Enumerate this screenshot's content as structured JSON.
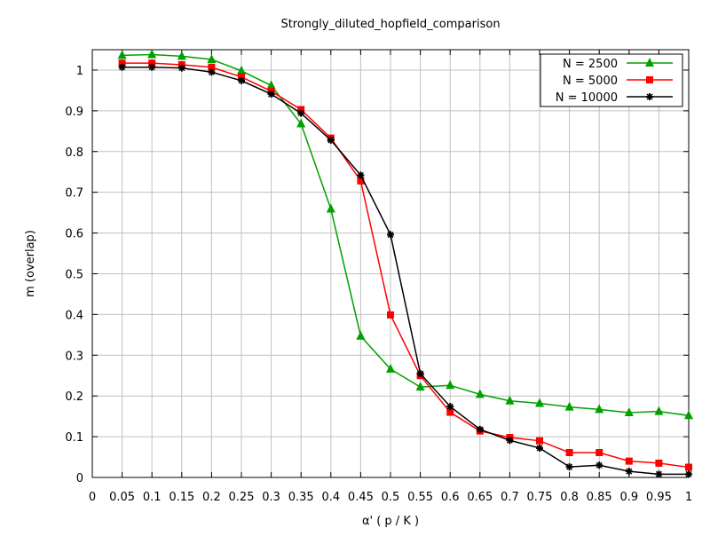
{
  "chart_data": {
    "type": "line",
    "title": "Strongly_diluted_hopfield_comparison",
    "xlabel": "α'  ( p / K )",
    "ylabel": "m (overlap)",
    "xlim": [
      0,
      1
    ],
    "ylim": [
      0,
      1.05
    ],
    "grid": true,
    "legend_position": "top-right",
    "x_ticks": [
      "0",
      "0.05",
      "0.1",
      "0.15",
      "0.2",
      "0.25",
      "0.3",
      "0.35",
      "0.4",
      "0.45",
      "0.5",
      "0.55",
      "0.6",
      "0.65",
      "0.7",
      "0.75",
      "0.8",
      "0.85",
      "0.9",
      "0.95",
      "1"
    ],
    "y_ticks": [
      "0",
      "0.1",
      "0.2",
      "0.3",
      "0.4",
      "0.5",
      "0.6",
      "0.7",
      "0.8",
      "0.9",
      "1"
    ],
    "x": [
      0.05,
      0.1,
      0.15,
      0.2,
      0.25,
      0.3,
      0.35,
      0.4,
      0.45,
      0.5,
      0.55,
      0.6,
      0.65,
      0.7,
      0.75,
      0.8,
      0.85,
      0.9,
      0.95,
      1.0
    ],
    "series": [
      {
        "name": "N = 2500",
        "color": "#00a000",
        "marker": "triangle",
        "values": [
          1.036,
          1.038,
          1.034,
          1.026,
          0.998,
          0.962,
          0.868,
          0.659,
          0.347,
          0.266,
          0.222,
          0.226,
          0.204,
          0.188,
          0.182,
          0.173,
          0.167,
          0.159,
          0.162,
          0.152
        ]
      },
      {
        "name": "N = 5000",
        "color": "#ff0000",
        "marker": "square",
        "values": [
          1.017,
          1.017,
          1.013,
          1.007,
          0.983,
          0.948,
          0.903,
          0.833,
          0.728,
          0.399,
          0.25,
          0.16,
          0.114,
          0.098,
          0.09,
          0.061,
          0.061,
          0.04,
          0.035,
          0.025
        ]
      },
      {
        "name": "N = 10000",
        "color": "#000000",
        "marker": "star",
        "values": [
          1.007,
          1.007,
          1.005,
          0.995,
          0.974,
          0.941,
          0.894,
          0.828,
          0.742,
          0.596,
          0.255,
          0.174,
          0.118,
          0.091,
          0.072,
          0.026,
          0.03,
          0.015,
          0.008,
          0.008
        ]
      }
    ]
  }
}
